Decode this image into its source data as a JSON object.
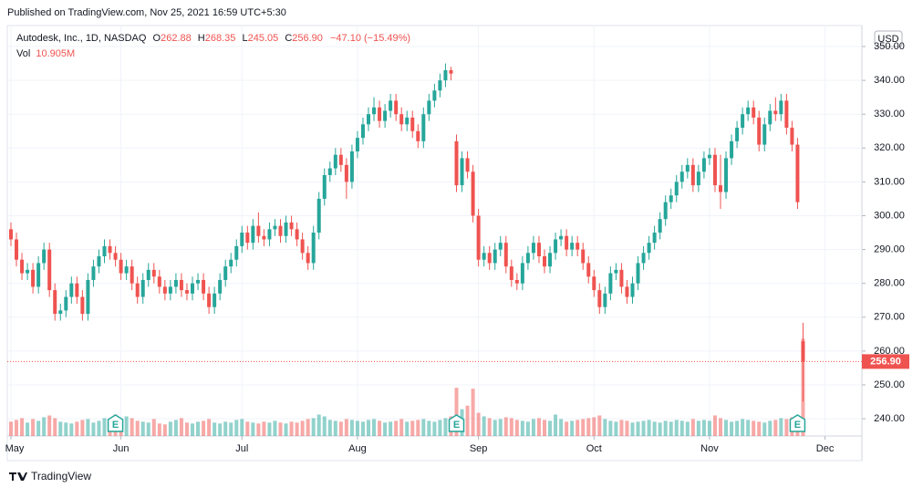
{
  "chart_data": {
    "type": "candlestick",
    "publisher": "Published on TradingView.com, Nov 25, 2021 16:59 UTC+5:30",
    "symbol": "Autodesk, Inc., 1D, NASDAQ",
    "o_label": "O",
    "h_label": "H",
    "l_label": "L",
    "c_label": "C",
    "last_label": "256.90",
    "change": {
      "value": -47.1,
      "label": "−47.10 (−15.49%)"
    },
    "volume_name": "Vol",
    "volume_last_label": "10.905M",
    "currency": "USD",
    "brand": "TradingView",
    "earnings_label": "E",
    "earnings": [
      19,
      81,
      143
    ],
    "up_color": "#26a69a",
    "down_color": "#ef5350",
    "grid": true,
    "xlim": [
      -0.66,
      154.7
    ],
    "xticks": [
      {
        "value": 0,
        "label": "May"
      },
      {
        "value": 20,
        "label": "Jun"
      },
      {
        "value": 42,
        "label": "Jul"
      },
      {
        "value": 63,
        "label": "Aug"
      },
      {
        "value": 85,
        "label": "Sep"
      },
      {
        "value": 106,
        "label": "Oct"
      },
      {
        "value": 127,
        "label": "Nov"
      },
      {
        "value": 148,
        "label": "Dec"
      }
    ],
    "ylim": [
      234.9,
      356.2
    ],
    "yticks": [
      {
        "value": 240,
        "label": "240.00"
      },
      {
        "value": 250,
        "label": "250.00"
      },
      {
        "value": 260,
        "label": "260.00"
      },
      {
        "value": 270,
        "label": "270.00"
      },
      {
        "value": 280,
        "label": "280.00"
      },
      {
        "value": 290,
        "label": "290.00"
      },
      {
        "value": 300,
        "label": "300.00"
      },
      {
        "value": 310,
        "label": "310.00"
      },
      {
        "value": 320,
        "label": "320.00"
      },
      {
        "value": 330,
        "label": "330.00"
      },
      {
        "value": 340,
        "label": "340.00"
      },
      {
        "value": 350,
        "label": "350.00"
      }
    ],
    "volume_ylim": [
      0,
      46
    ],
    "open": [
      296,
      293,
      287,
      283,
      284,
      279,
      286,
      290,
      278,
      271,
      272,
      276,
      280,
      276,
      271,
      281,
      285,
      288,
      291,
      289,
      287,
      283,
      285,
      280,
      276,
      281,
      284,
      282,
      279,
      277,
      279,
      281,
      278,
      277,
      280,
      281,
      277,
      273,
      277,
      281,
      285,
      287,
      291,
      295,
      292,
      297,
      294,
      293,
      296,
      297,
      294,
      298,
      296,
      293,
      289,
      286,
      295,
      305,
      312,
      314,
      318,
      315,
      310,
      319,
      323,
      327,
      330,
      332,
      328,
      331,
      334,
      330,
      327,
      329,
      325,
      322,
      330,
      334,
      337,
      340,
      343,
      322,
      309,
      317,
      313,
      300,
      287,
      289,
      286,
      290,
      292,
      285,
      281,
      280,
      286,
      289,
      292,
      288,
      285,
      289,
      293,
      294,
      290,
      292,
      290,
      286,
      282,
      278,
      273,
      277,
      283,
      284,
      279,
      276,
      280,
      286,
      289,
      292,
      295,
      299,
      304,
      306,
      310,
      313,
      315,
      309,
      313,
      317,
      318,
      309,
      307,
      317,
      322,
      326,
      330,
      332,
      329,
      321,
      327,
      331,
      330,
      334,
      326,
      321,
      262.88
    ],
    "high": [
      298,
      295,
      289,
      286,
      286,
      288,
      292,
      292,
      280,
      274,
      278,
      282,
      282,
      278,
      283,
      287,
      290,
      293,
      293,
      291,
      289,
      287,
      287,
      282,
      283,
      286,
      286,
      284,
      281,
      281,
      283,
      283,
      280,
      282,
      283,
      283,
      279,
      279,
      283,
      287,
      289,
      293,
      297,
      297,
      299,
      301,
      296,
      298,
      299,
      299,
      300,
      300,
      298,
      295,
      291,
      297,
      307,
      314,
      316,
      320,
      320,
      317,
      321,
      325,
      329,
      332,
      335,
      334,
      333,
      336,
      336,
      332,
      331,
      331,
      327,
      332,
      336,
      339,
      342,
      345,
      344,
      324,
      319,
      319,
      315,
      302,
      291,
      291,
      292,
      294,
      294,
      287,
      283,
      288,
      291,
      294,
      294,
      290,
      291,
      295,
      296,
      296,
      294,
      294,
      292,
      288,
      284,
      280,
      279,
      285,
      286,
      286,
      281,
      282,
      288,
      291,
      294,
      297,
      301,
      306,
      308,
      312,
      315,
      317,
      317,
      315,
      319,
      320,
      320,
      318,
      319,
      324,
      328,
      332,
      334,
      334,
      331,
      329,
      333,
      335,
      336,
      336,
      328,
      323,
      268.35
    ],
    "low": [
      291,
      285,
      281,
      281,
      277,
      277,
      284,
      276,
      269,
      269,
      270,
      274,
      274,
      269,
      269,
      279,
      283,
      286,
      287,
      285,
      281,
      281,
      278,
      274,
      274,
      279,
      280,
      277,
      275,
      275,
      277,
      276,
      275,
      275,
      278,
      275,
      271,
      271,
      275,
      279,
      283,
      285,
      289,
      290,
      290,
      292,
      291,
      291,
      294,
      292,
      292,
      294,
      291,
      287,
      284,
      284,
      293,
      303,
      310,
      312,
      313,
      305,
      308,
      317,
      321,
      325,
      328,
      326,
      326,
      329,
      328,
      325,
      325,
      323,
      320,
      320,
      328,
      332,
      335,
      338,
      340,
      307,
      307,
      311,
      298,
      285,
      285,
      284,
      284,
      288,
      283,
      279,
      278,
      278,
      284,
      287,
      286,
      283,
      283,
      287,
      291,
      288,
      288,
      288,
      284,
      280,
      276,
      271,
      271,
      275,
      281,
      277,
      274,
      274,
      278,
      284,
      287,
      290,
      293,
      297,
      302,
      304,
      308,
      311,
      307,
      307,
      311,
      315,
      307,
      302,
      305,
      315,
      320,
      324,
      328,
      327,
      319,
      319,
      325,
      328,
      328,
      324,
      319,
      302,
      245.05
    ],
    "close": [
      293,
      287,
      283,
      284,
      279,
      286,
      290,
      278,
      271,
      272,
      276,
      280,
      276,
      271,
      281,
      285,
      288,
      291,
      289,
      287,
      283,
      285,
      280,
      276,
      281,
      284,
      282,
      279,
      277,
      279,
      281,
      278,
      277,
      280,
      281,
      277,
      273,
      277,
      281,
      285,
      287,
      291,
      295,
      292,
      297,
      294,
      293,
      296,
      297,
      294,
      298,
      296,
      293,
      289,
      286,
      295,
      305,
      312,
      314,
      318,
      315,
      310,
      319,
      323,
      327,
      330,
      332,
      328,
      331,
      334,
      330,
      327,
      329,
      325,
      322,
      330,
      334,
      337,
      340,
      343,
      342,
      309,
      317,
      313,
      300,
      287,
      289,
      286,
      290,
      292,
      285,
      281,
      280,
      286,
      289,
      292,
      288,
      285,
      289,
      293,
      294,
      290,
      292,
      290,
      286,
      282,
      278,
      273,
      277,
      283,
      284,
      279,
      276,
      280,
      286,
      289,
      292,
      295,
      299,
      304,
      306,
      310,
      313,
      315,
      309,
      313,
      317,
      318,
      309,
      307,
      317,
      322,
      326,
      330,
      332,
      329,
      321,
      327,
      331,
      330,
      334,
      326,
      321,
      304,
      256.9
    ],
    "volume": [
      1.6,
      1.8,
      2.0,
      1.5,
      1.9,
      1.7,
      2.1,
      2.3,
      2.0,
      1.6,
      1.5,
      1.4,
      1.6,
      1.8,
      1.9,
      1.5,
      1.7,
      2.0,
      1.6,
      2.4,
      1.8,
      2.2,
      2.0,
      1.7,
      1.6,
      1.5,
      1.9,
      1.4,
      1.3,
      1.6,
      1.8,
      2.0,
      1.5,
      1.4,
      1.6,
      1.7,
      1.9,
      1.5,
      1.4,
      1.6,
      1.5,
      1.8,
      1.9,
      1.6,
      1.5,
      1.4,
      1.6,
      1.5,
      1.7,
      1.5,
      1.4,
      1.6,
      1.5,
      1.7,
      1.9,
      2.0,
      2.4,
      2.2,
      1.8,
      1.7,
      1.6,
      1.9,
      1.8,
      1.7,
      1.6,
      1.8,
      1.9,
      1.7,
      1.5,
      1.6,
      1.7,
      1.9,
      1.6,
      1.7,
      1.8,
      1.9,
      1.7,
      1.6,
      1.8,
      2.0,
      2.2,
      5.4,
      3.0,
      3.4,
      5.3,
      2.6,
      2.2,
      2.0,
      1.8,
      1.9,
      2.1,
      2.0,
      1.8,
      1.7,
      1.6,
      1.9,
      2.0,
      1.8,
      1.7,
      2.4,
      1.9,
      1.6,
      1.7,
      1.8,
      1.9,
      2.0,
      2.1,
      2.3,
      1.9,
      1.7,
      1.6,
      1.8,
      1.7,
      1.5,
      1.6,
      1.7,
      1.8,
      1.6,
      1.5,
      1.7,
      1.6,
      1.8,
      1.7,
      1.6,
      1.9,
      1.7,
      1.8,
      1.7,
      2.3,
      2.0,
      1.8,
      1.6,
      1.7,
      1.9,
      1.8,
      1.7,
      1.6,
      1.5,
      1.7,
      1.8,
      2.0,
      1.9,
      2.1,
      2.2,
      10.905
    ]
  }
}
